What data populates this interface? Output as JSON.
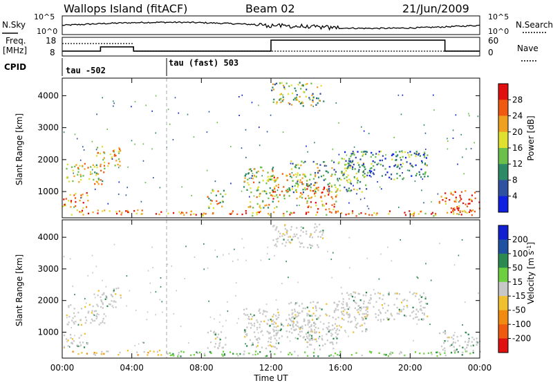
{
  "header": {
    "station": "Wallops Island (fitACF)",
    "beam": "Beam 02",
    "date": "21/Jun/2009"
  },
  "noise_panel": {
    "left_label": "N.Sky",
    "right_label": "N.Search",
    "left_ticks": [
      "10^5",
      "10^0"
    ],
    "right_ticks": [
      "10^5",
      "10^0"
    ]
  },
  "freq_panel": {
    "left_label_top": "Freq.",
    "left_label_bottom": "[MHz]",
    "right_label": "Nave",
    "left_ticks": [
      "18",
      "8"
    ],
    "right_ticks": [
      "60",
      "0"
    ],
    "frequency_steps": [
      {
        "t": 0.0,
        "mhz": 10.6
      },
      {
        "t": 2.2,
        "mhz": 12.9
      },
      {
        "t": 4.1,
        "mhz": 10.6
      },
      {
        "t": 12.0,
        "mhz": 16.5
      },
      {
        "t": 22.0,
        "mhz": 10.6
      },
      {
        "t": 24.0,
        "mhz": 10.6
      }
    ]
  },
  "cpid": {
    "label": "CPID",
    "segments": [
      {
        "start": 0.0,
        "end": 6.0,
        "label": "tau -502"
      },
      {
        "start": 6.0,
        "end": 24.0,
        "label": "tau (fast) 503"
      }
    ]
  },
  "chart_data": [
    {
      "type": "heatmap",
      "quantity": "Power",
      "ylabel": "Slant Range [km]",
      "xlabel": "Time UT",
      "x_unit": "hours UT",
      "xlim": [
        0,
        24
      ],
      "ylim": [
        180,
        4550
      ],
      "yticks": [
        1000,
        2000,
        3000,
        4000
      ],
      "xticks": [
        "00:00",
        "04:00",
        "08:00",
        "12:00",
        "16:00",
        "20:00",
        "00:00"
      ],
      "colorbar": {
        "label": "Power [dB]",
        "ticks": [
          "4",
          "8",
          "12",
          "16",
          "20",
          "24",
          "28"
        ],
        "colors": [
          "#1020e0",
          "#3050a0",
          "#2c8a66",
          "#6cbf4a",
          "#e0e030",
          "#f0a020",
          "#f05a10",
          "#e01010"
        ]
      },
      "regions": [
        {
          "t0": 0.0,
          "t1": 1.5,
          "r0": 500,
          "r1": 1000,
          "level": 0.75
        },
        {
          "t0": 0.2,
          "t1": 2.4,
          "r0": 1250,
          "r1": 1900,
          "level": 0.6
        },
        {
          "t0": 1.8,
          "t1": 3.4,
          "r0": 1800,
          "r1": 2450,
          "level": 0.55
        },
        {
          "t0": 0.5,
          "t1": 6.0,
          "r0": 300,
          "r1": 460,
          "level": 0.85
        },
        {
          "t0": 6.0,
          "t1": 24.0,
          "r0": 260,
          "r1": 420,
          "level": 0.75
        },
        {
          "t0": 8.3,
          "t1": 9.4,
          "r0": 480,
          "r1": 1100,
          "level": 0.55
        },
        {
          "t0": 10.4,
          "t1": 12.4,
          "r0": 500,
          "r1": 1800,
          "level": 0.5
        },
        {
          "t0": 11.8,
          "t1": 14.6,
          "r0": 800,
          "r1": 1600,
          "level": 0.65
        },
        {
          "t0": 14.0,
          "t1": 15.8,
          "r0": 450,
          "r1": 1200,
          "level": 0.75
        },
        {
          "t0": 13.0,
          "t1": 17.5,
          "r0": 1000,
          "r1": 2000,
          "level": 0.4
        },
        {
          "t0": 16.0,
          "t1": 21.0,
          "r0": 1400,
          "r1": 2300,
          "level": 0.3
        },
        {
          "t0": 21.6,
          "t1": 24.0,
          "r0": 380,
          "r1": 1050,
          "level": 0.85
        },
        {
          "t0": 12.0,
          "t1": 15.0,
          "r0": 3700,
          "r1": 4450,
          "level": 0.45
        }
      ]
    },
    {
      "type": "heatmap",
      "quantity": "Velocity",
      "ylabel": "Slant Range [km]",
      "xlabel": "Time UT",
      "x_unit": "hours UT",
      "xlim": [
        0,
        24
      ],
      "ylim": [
        180,
        4550
      ],
      "yticks": [
        1000,
        2000,
        3000,
        4000
      ],
      "xticks": [
        "00:00",
        "04:00",
        "08:00",
        "12:00",
        "16:00",
        "20:00",
        "00:00"
      ],
      "colorbar": {
        "label": "Velocity [m s",
        "label_exp": "-1",
        "label_close": "]",
        "ticks": [
          "200",
          "100",
          "50",
          "15",
          "-15",
          "-50",
          "-100",
          "-200"
        ],
        "colors": [
          "#1020d0",
          "#2050a0",
          "#2c8a50",
          "#6cd040",
          "#c8c8c8",
          "#f0c030",
          "#f08a10",
          "#f05a10",
          "#e01010"
        ]
      },
      "regions": [
        {
          "t0": 0.0,
          "t1": 1.5,
          "r0": 500,
          "r1": 1000,
          "level": 0.5
        },
        {
          "t0": 0.2,
          "t1": 2.4,
          "r0": 1250,
          "r1": 1900,
          "level": 0.5
        },
        {
          "t0": 1.8,
          "t1": 3.4,
          "r0": 1800,
          "r1": 2450,
          "level": 0.5
        },
        {
          "t0": 0.5,
          "t1": 6.0,
          "r0": 300,
          "r1": 460,
          "level": 0.7
        },
        {
          "t0": 6.0,
          "t1": 24.0,
          "r0": 260,
          "r1": 420,
          "level": 0.35
        },
        {
          "t0": 8.3,
          "t1": 9.4,
          "r0": 480,
          "r1": 1100,
          "level": 0.5
        },
        {
          "t0": 10.4,
          "t1": 12.4,
          "r0": 500,
          "r1": 1800,
          "level": 0.5
        },
        {
          "t0": 11.8,
          "t1": 14.6,
          "r0": 800,
          "r1": 1600,
          "level": 0.5
        },
        {
          "t0": 14.0,
          "t1": 15.8,
          "r0": 450,
          "r1": 1200,
          "level": 0.5
        },
        {
          "t0": 13.0,
          "t1": 17.5,
          "r0": 1000,
          "r1": 2000,
          "level": 0.5
        },
        {
          "t0": 16.0,
          "t1": 21.0,
          "r0": 1400,
          "r1": 2300,
          "level": 0.5
        },
        {
          "t0": 21.6,
          "t1": 24.0,
          "r0": 380,
          "r1": 1050,
          "level": 0.5
        },
        {
          "t0": 12.0,
          "t1": 15.0,
          "r0": 3700,
          "r1": 4450,
          "level": 0.5
        }
      ]
    }
  ],
  "x_axis": {
    "label": "Time UT",
    "ticks": [
      "00:00",
      "04:00",
      "08:00",
      "12:00",
      "16:00",
      "20:00",
      "00:00"
    ]
  }
}
